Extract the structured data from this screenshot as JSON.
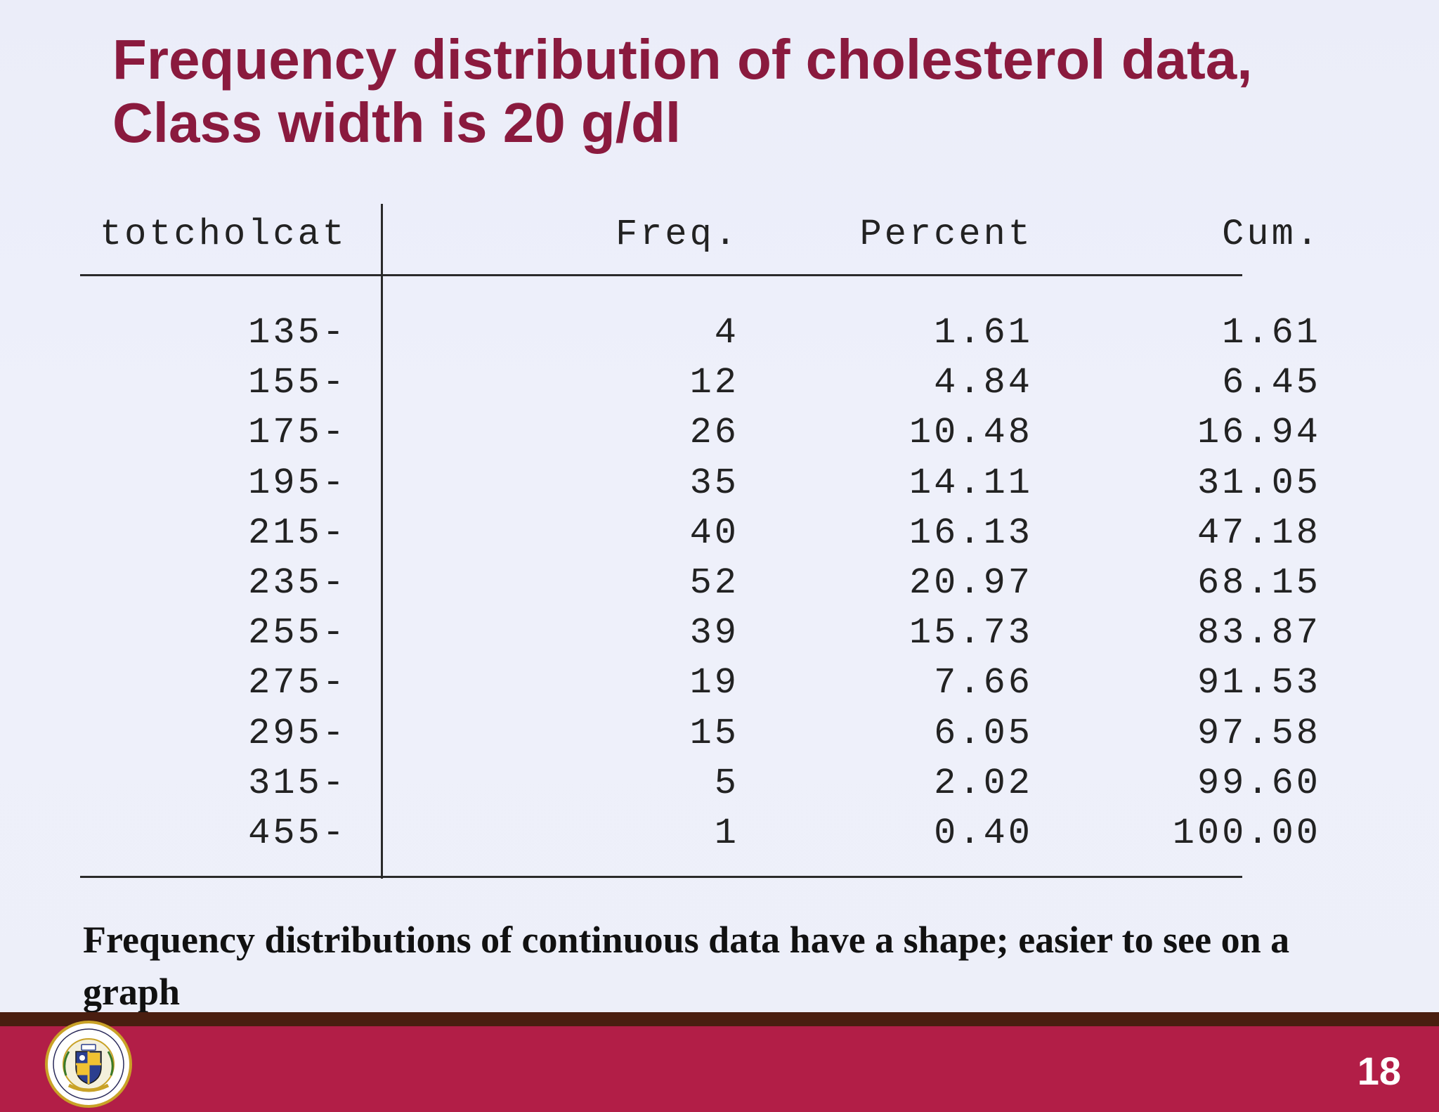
{
  "slide": {
    "title_line1": "Frequency distribution of cholesterol data,",
    "title_line2": "Class width is 20 g/dl",
    "caption": "Frequency distributions of continuous data have a shape; easier to see on a graph",
    "page_number": "18",
    "logo": {
      "icon": "university-seal-icon",
      "ring_text": "MBARARA UNIVERSITY OF SCIENCE AND TECHNOLOGY"
    },
    "colors": {
      "title": "#8a1a3e",
      "footer": "#b21e47",
      "footer_edge": "#4a1e10",
      "background": "#edeff9"
    }
  },
  "table": {
    "headers": [
      "totcholcat",
      "Freq.",
      "Percent",
      "Cum."
    ],
    "rows": [
      [
        "135-",
        "4",
        "1.61",
        "1.61"
      ],
      [
        "155-",
        "12",
        "4.84",
        "6.45"
      ],
      [
        "175-",
        "26",
        "10.48",
        "16.94"
      ],
      [
        "195-",
        "35",
        "14.11",
        "31.05"
      ],
      [
        "215-",
        "40",
        "16.13",
        "47.18"
      ],
      [
        "235-",
        "52",
        "20.97",
        "68.15"
      ],
      [
        "255-",
        "39",
        "15.73",
        "83.87"
      ],
      [
        "275-",
        "19",
        "7.66",
        "91.53"
      ],
      [
        "295-",
        "15",
        "6.05",
        "97.58"
      ],
      [
        "315-",
        "5",
        "2.02",
        "99.60"
      ],
      [
        "455-",
        "1",
        "0.40",
        "100.00"
      ]
    ]
  }
}
